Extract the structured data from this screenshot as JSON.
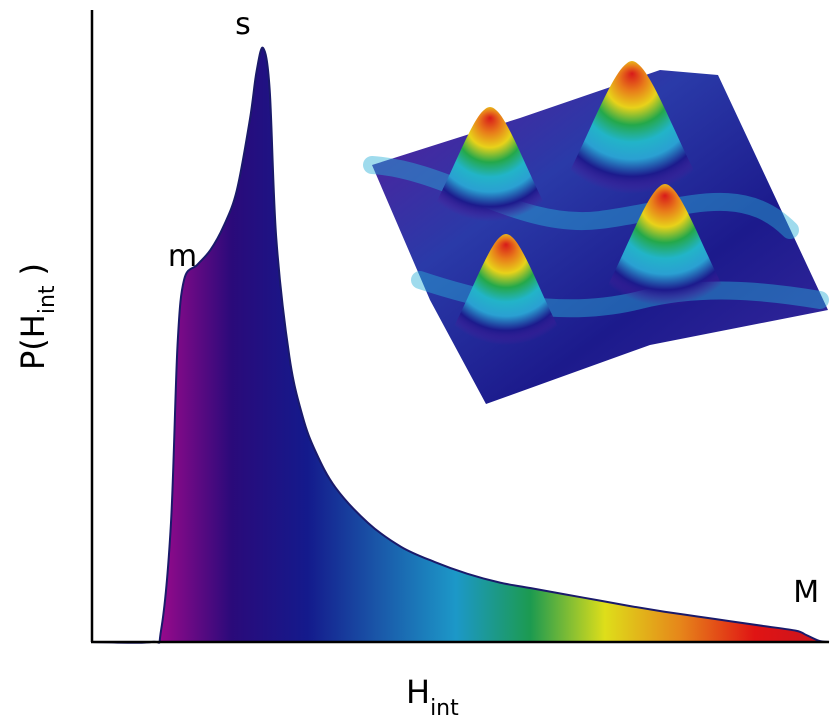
{
  "chart_data": {
    "type": "area",
    "xlabel": "H",
    "xlabel_sub": "int",
    "ylabel": "P(H",
    "ylabel_sub": "int",
    "ylabel_close": ")",
    "annotations": [
      {
        "text": "m",
        "x": 0.05,
        "y": 0.64
      },
      {
        "text": "s",
        "x": 0.14,
        "y": 1.0
      },
      {
        "text": "M",
        "x": 0.97,
        "y": 0.02
      }
    ],
    "xlim": [
      -0.12,
      1.0
    ],
    "ylim": [
      0,
      1.0
    ],
    "grid": false,
    "legend": "none",
    "series": [
      {
        "x": [
          -0.12,
          -0.03,
          -0.015,
          0.0,
          0.01,
          0.02,
          0.04,
          0.06,
          0.08,
          0.1,
          0.12,
          0.13,
          0.14,
          0.15,
          0.16,
          0.18,
          0.2,
          0.22,
          0.25,
          0.3,
          0.35,
          0.4,
          0.45,
          0.5,
          0.55,
          0.6,
          0.65,
          0.7,
          0.75,
          0.8,
          0.85,
          0.9,
          0.95,
          0.965,
          0.985,
          1.0
        ],
        "y": [
          0.0,
          0.0,
          0.02,
          0.2,
          0.5,
          0.61,
          0.635,
          0.66,
          0.7,
          0.76,
          0.88,
          0.96,
          1.0,
          0.93,
          0.68,
          0.48,
          0.38,
          0.32,
          0.26,
          0.2,
          0.16,
          0.135,
          0.115,
          0.1,
          0.09,
          0.08,
          0.07,
          0.06,
          0.051,
          0.043,
          0.035,
          0.027,
          0.019,
          0.012,
          0.002,
          0.0
        ]
      }
    ],
    "fill_gradient": [
      "#9b0a8c",
      "#2a0a7a",
      "#141a8c",
      "#1a5aaa",
      "#1c98c8",
      "#1c9a50",
      "#dede1a",
      "#e6861a",
      "#e01414",
      "#c8141e"
    ]
  },
  "inset": {
    "colors": [
      "#5a1a9a",
      "#1c1a8c",
      "#2aa0d2",
      "#22b4c8",
      "#24a84a",
      "#e8d21a",
      "#e87a1a",
      "#d81a1a"
    ]
  }
}
